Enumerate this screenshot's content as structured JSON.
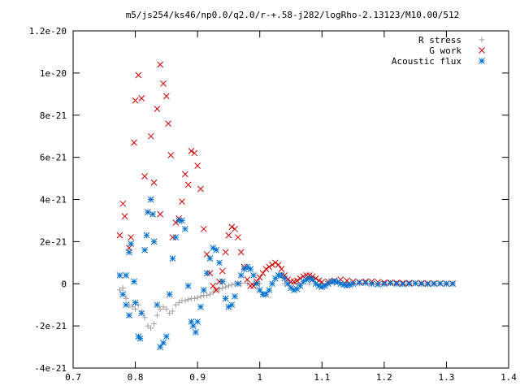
{
  "chart_data": {
    "type": "scatter",
    "title": "m5/js254/ks46/np0.0/q2.0/r-+.58-j282/logRho-2.13123/M10.00/512",
    "xlim": [
      0.7,
      1.4
    ],
    "ylim": [
      -4e-21,
      1.2e-20
    ],
    "xticks": [
      0.7,
      0.8,
      0.9,
      1.0,
      1.1,
      1.2,
      1.3,
      1.4
    ],
    "xtick_labels": [
      "0.7",
      "0.8",
      "0.9",
      "1",
      "1.1",
      "1.2",
      "1.3",
      "1.4"
    ],
    "yticks": [
      -4e-21,
      -2e-21,
      0,
      2e-21,
      4e-21,
      6e-21,
      8e-21,
      1e-20,
      1.2e-20
    ],
    "ytick_labels": [
      "-4e-21",
      "-2e-21",
      "0",
      "2e-21",
      "4e-21",
      "6e-21",
      "8e-21",
      "1e-20",
      "1.2e-20"
    ],
    "legend_position": "top-right",
    "grid": false,
    "series": [
      {
        "name": "R stress",
        "marker": "plus",
        "color": "#a0a0a0",
        "points": [
          [
            0.775,
            -3e-22
          ],
          [
            0.78,
            -2e-22
          ],
          [
            0.785,
            -7e-22
          ],
          [
            0.79,
            -1e-21
          ],
          [
            0.795,
            -1.1e-21
          ],
          [
            0.8,
            -1.2e-21
          ],
          [
            0.805,
            -1e-21
          ],
          [
            0.81,
            -1.3e-21
          ],
          [
            0.815,
            -1.6e-21
          ],
          [
            0.82,
            -2e-21
          ],
          [
            0.825,
            -2.1e-21
          ],
          [
            0.83,
            -1.9e-21
          ],
          [
            0.835,
            -1.5e-21
          ],
          [
            0.84,
            -1.2e-21
          ],
          [
            0.845,
            -1.1e-21
          ],
          [
            0.85,
            -1.2e-21
          ],
          [
            0.855,
            -1.4e-21
          ],
          [
            0.86,
            -1.3e-21
          ],
          [
            0.865,
            -1e-21
          ],
          [
            0.87,
            -9e-22
          ],
          [
            0.875,
            -8e-22
          ],
          [
            0.88,
            -8e-22
          ],
          [
            0.885,
            -7.5e-22
          ],
          [
            0.89,
            -7e-22
          ],
          [
            0.895,
            -7e-22
          ],
          [
            0.9,
            -6.5e-22
          ],
          [
            0.905,
            -6e-22
          ],
          [
            0.91,
            -5.5e-22
          ],
          [
            0.915,
            -5.5e-22
          ],
          [
            0.92,
            -5e-22
          ],
          [
            0.925,
            -4e-22
          ],
          [
            0.93,
            -3e-22
          ],
          [
            0.935,
            -2.5e-22
          ],
          [
            0.94,
            -2e-22
          ],
          [
            0.945,
            -1.5e-22
          ],
          [
            0.95,
            -1e-22
          ],
          [
            0.955,
            -5e-23
          ],
          [
            0.96,
            0
          ],
          [
            0.965,
            2e-23
          ],
          [
            0.97,
            3e-23
          ],
          [
            0.98,
            3e-23
          ],
          [
            0.99,
            2e-23
          ],
          [
            1.0,
            1e-23
          ],
          [
            1.02,
            1e-23
          ],
          [
            1.04,
            1e-23
          ],
          [
            1.06,
            0
          ],
          [
            1.08,
            0
          ],
          [
            1.1,
            0
          ],
          [
            1.12,
            0
          ],
          [
            1.14,
            0
          ],
          [
            1.16,
            0
          ],
          [
            1.18,
            0
          ],
          [
            1.2,
            0
          ],
          [
            1.22,
            0
          ],
          [
            1.24,
            0
          ],
          [
            1.26,
            0
          ],
          [
            1.28,
            0
          ],
          [
            1.3,
            0
          ],
          [
            1.31,
            0
          ]
        ]
      },
      {
        "name": "G work",
        "marker": "cross",
        "color": "#d00000",
        "points": [
          [
            0.775,
            2.3e-21
          ],
          [
            0.78,
            3.8e-21
          ],
          [
            0.783,
            3.2e-21
          ],
          [
            0.79,
            1.7e-21
          ],
          [
            0.793,
            2.2e-21
          ],
          [
            0.798,
            6.7e-21
          ],
          [
            0.8,
            8.7e-21
          ],
          [
            0.805,
            9.9e-21
          ],
          [
            0.81,
            8.8e-21
          ],
          [
            0.815,
            5.1e-21
          ],
          [
            0.82,
            3.4e-21
          ],
          [
            0.825,
            7e-21
          ],
          [
            0.83,
            4.8e-21
          ],
          [
            0.835,
            8.3e-21
          ],
          [
            0.84,
            3.3e-21
          ],
          [
            0.84,
            1.04e-20
          ],
          [
            0.845,
            9.5e-21
          ],
          [
            0.85,
            8.9e-21
          ],
          [
            0.853,
            7.6e-21
          ],
          [
            0.857,
            6.1e-21
          ],
          [
            0.86,
            2.2e-21
          ],
          [
            0.865,
            2.9e-21
          ],
          [
            0.87,
            3.1e-21
          ],
          [
            0.875,
            3.9e-21
          ],
          [
            0.88,
            5.2e-21
          ],
          [
            0.885,
            4.7e-21
          ],
          [
            0.89,
            6.3e-21
          ],
          [
            0.895,
            6.2e-21
          ],
          [
            0.9,
            5.6e-21
          ],
          [
            0.905,
            4.5e-21
          ],
          [
            0.91,
            2.6e-21
          ],
          [
            0.915,
            1.4e-21
          ],
          [
            0.92,
            5e-22
          ],
          [
            0.925,
            -1e-22
          ],
          [
            0.93,
            -3e-22
          ],
          [
            0.935,
            1e-22
          ],
          [
            0.94,
            6e-22
          ],
          [
            0.945,
            1.5e-21
          ],
          [
            0.95,
            2.3e-21
          ],
          [
            0.955,
            2.7e-21
          ],
          [
            0.96,
            2.6e-21
          ],
          [
            0.965,
            2.2e-21
          ],
          [
            0.97,
            1.5e-21
          ],
          [
            0.975,
            8e-22
          ],
          [
            0.98,
            2e-22
          ],
          [
            0.985,
            -1e-22
          ],
          [
            0.99,
            -1e-22
          ],
          [
            0.995,
            1e-22
          ],
          [
            1.0,
            3e-22
          ],
          [
            1.005,
            5e-22
          ],
          [
            1.01,
            7e-22
          ],
          [
            1.015,
            8e-22
          ],
          [
            1.02,
            9e-22
          ],
          [
            1.025,
            1e-21
          ],
          [
            1.03,
            9e-22
          ],
          [
            1.035,
            7e-22
          ],
          [
            1.04,
            4e-22
          ],
          [
            1.045,
            2e-22
          ],
          [
            1.05,
            1e-22
          ],
          [
            1.055,
            1e-22
          ],
          [
            1.06,
            1.5e-22
          ],
          [
            1.065,
            2.5e-22
          ],
          [
            1.07,
            3.5e-22
          ],
          [
            1.075,
            4e-22
          ],
          [
            1.08,
            4e-22
          ],
          [
            1.085,
            3.5e-22
          ],
          [
            1.09,
            2.5e-22
          ],
          [
            1.095,
            1.5e-22
          ],
          [
            1.1,
            8e-23
          ],
          [
            1.11,
            1e-22
          ],
          [
            1.12,
            1.5e-22
          ],
          [
            1.13,
            2e-22
          ],
          [
            1.14,
            1.5e-22
          ],
          [
            1.15,
            1e-22
          ],
          [
            1.16,
            8e-23
          ],
          [
            1.17,
            1e-22
          ],
          [
            1.18,
            1e-22
          ],
          [
            1.19,
            8e-23
          ],
          [
            1.2,
            6e-23
          ],
          [
            1.21,
            6e-23
          ],
          [
            1.22,
            5e-23
          ],
          [
            1.23,
            4e-23
          ],
          [
            1.24,
            4e-23
          ],
          [
            1.25,
            3e-23
          ],
          [
            1.26,
            3e-23
          ],
          [
            1.27,
            2e-23
          ],
          [
            1.28,
            2e-23
          ],
          [
            1.29,
            2e-23
          ],
          [
            1.3,
            1e-23
          ],
          [
            1.31,
            1e-23
          ]
        ]
      },
      {
        "name": "Acoustic flux",
        "marker": "star",
        "color": "#0070d0",
        "points": [
          [
            0.775,
            4e-22
          ],
          [
            0.78,
            -5e-22
          ],
          [
            0.785,
            -1e-21
          ],
          [
            0.79,
            -1.5e-21
          ],
          [
            0.785,
            4e-22
          ],
          [
            0.79,
            1.5e-21
          ],
          [
            0.793,
            1.9e-21
          ],
          [
            0.798,
            1e-22
          ],
          [
            0.8,
            -9e-22
          ],
          [
            0.805,
            -2.5e-21
          ],
          [
            0.808,
            -2.6e-21
          ],
          [
            0.81,
            -1.4e-21
          ],
          [
            0.815,
            1.6e-21
          ],
          [
            0.818,
            2.3e-21
          ],
          [
            0.82,
            3.4e-21
          ],
          [
            0.825,
            4e-21
          ],
          [
            0.828,
            3.3e-21
          ],
          [
            0.83,
            2e-21
          ],
          [
            0.835,
            -1e-21
          ],
          [
            0.84,
            -3e-21
          ],
          [
            0.845,
            -2.8e-21
          ],
          [
            0.85,
            -2.5e-21
          ],
          [
            0.855,
            -5e-22
          ],
          [
            0.86,
            1.2e-21
          ],
          [
            0.865,
            2.2e-21
          ],
          [
            0.87,
            3e-21
          ],
          [
            0.875,
            3e-21
          ],
          [
            0.88,
            2.6e-21
          ],
          [
            0.885,
            -1e-22
          ],
          [
            0.89,
            -1.8e-21
          ],
          [
            0.893,
            -2e-21
          ],
          [
            0.897,
            -2.3e-21
          ],
          [
            0.9,
            -1.8e-21
          ],
          [
            0.905,
            -1.1e-21
          ],
          [
            0.91,
            -3e-22
          ],
          [
            0.915,
            5e-22
          ],
          [
            0.92,
            1.2e-21
          ],
          [
            0.925,
            1.7e-21
          ],
          [
            0.93,
            1.6e-21
          ],
          [
            0.935,
            1e-21
          ],
          [
            0.94,
            1e-22
          ],
          [
            0.945,
            -7e-22
          ],
          [
            0.95,
            -1.1e-21
          ],
          [
            0.955,
            -1e-21
          ],
          [
            0.96,
            -6e-22
          ],
          [
            0.965,
            0
          ],
          [
            0.97,
            4e-22
          ],
          [
            0.975,
            7e-22
          ],
          [
            0.98,
            8e-22
          ],
          [
            0.985,
            7e-22
          ],
          [
            0.99,
            4e-22
          ],
          [
            0.995,
            0
          ],
          [
            1.0,
            -3e-22
          ],
          [
            1.005,
            -5e-22
          ],
          [
            1.01,
            -5e-22
          ],
          [
            1.015,
            -3e-22
          ],
          [
            1.02,
            0
          ],
          [
            1.025,
            2.5e-22
          ],
          [
            1.03,
            4e-22
          ],
          [
            1.035,
            4e-22
          ],
          [
            1.04,
            2.5e-22
          ],
          [
            1.045,
            0
          ],
          [
            1.05,
            -2e-22
          ],
          [
            1.055,
            -3e-22
          ],
          [
            1.06,
            -2.5e-22
          ],
          [
            1.065,
            -1e-22
          ],
          [
            1.07,
            1e-22
          ],
          [
            1.075,
            2e-22
          ],
          [
            1.08,
            2.5e-22
          ],
          [
            1.085,
            2e-22
          ],
          [
            1.09,
            0
          ],
          [
            1.095,
            -1e-22
          ],
          [
            1.1,
            -1.5e-22
          ],
          [
            1.105,
            -1e-22
          ],
          [
            1.11,
            0
          ],
          [
            1.115,
            1e-22
          ],
          [
            1.12,
            1.2e-22
          ],
          [
            1.125,
            8e-23
          ],
          [
            1.13,
            0
          ],
          [
            1.135,
            -5e-23
          ],
          [
            1.14,
            -8e-23
          ],
          [
            1.145,
            -5e-23
          ],
          [
            1.15,
            0
          ],
          [
            1.16,
            5e-23
          ],
          [
            1.17,
            4e-23
          ],
          [
            1.18,
            0
          ],
          [
            1.19,
            -3e-23
          ],
          [
            1.2,
            0
          ],
          [
            1.21,
            3e-23
          ],
          [
            1.22,
            0
          ],
          [
            1.23,
            -2e-23
          ],
          [
            1.24,
            0
          ],
          [
            1.25,
            2e-23
          ],
          [
            1.26,
            0
          ],
          [
            1.27,
            -1e-23
          ],
          [
            1.28,
            0
          ],
          [
            1.29,
            1e-23
          ],
          [
            1.3,
            0
          ],
          [
            1.31,
            0
          ]
        ]
      }
    ]
  }
}
